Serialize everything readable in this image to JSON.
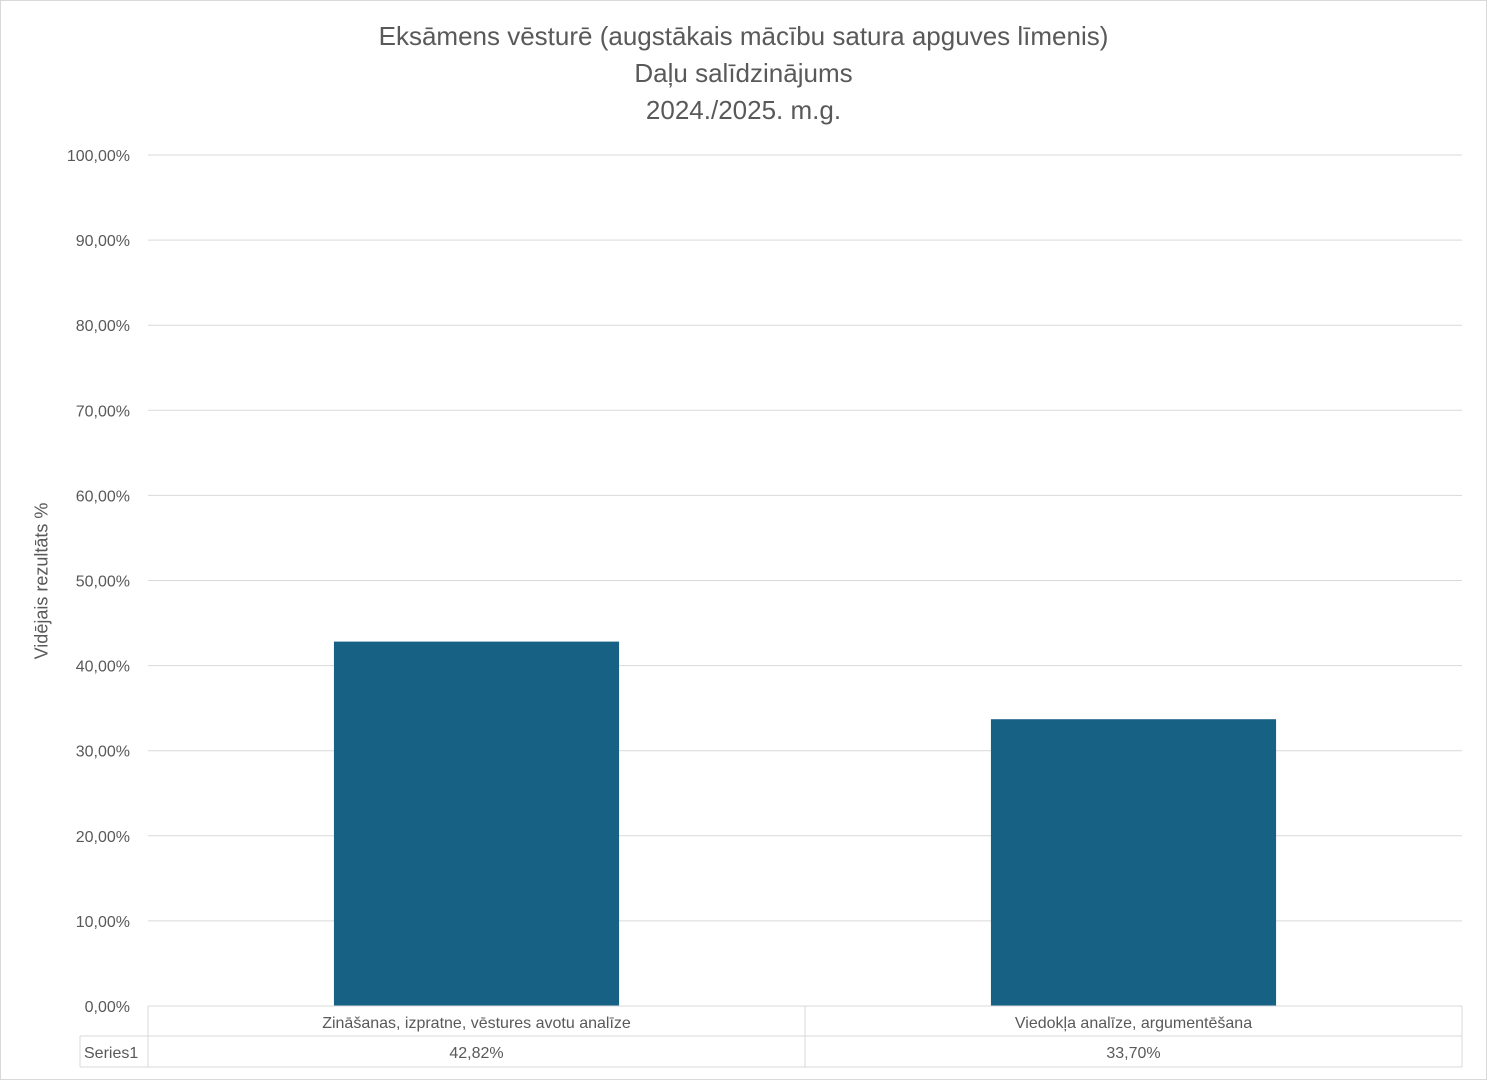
{
  "chart_data": {
    "type": "bar",
    "title_lines": [
      "Eksāmens vēsturē (augstākais mācību satura apguves līmenis)",
      "Daļu salīdzinājums",
      "2024./2025. m.g."
    ],
    "xlabel": "",
    "ylabel": "Vidējais rezultāts %",
    "ylim": [
      0,
      100
    ],
    "ytick_step": 10,
    "ytick_labels": [
      "0,00%",
      "10,00%",
      "20,00%",
      "30,00%",
      "40,00%",
      "50,00%",
      "60,00%",
      "70,00%",
      "80,00%",
      "90,00%",
      "100,00%"
    ],
    "categories": [
      "Zināšanas, izpratne, vēstures avotu analīze",
      "Viedokļa analīze, argumentēšana"
    ],
    "series": [
      {
        "name": "Series1",
        "values": [
          42.82,
          33.7
        ],
        "value_labels": [
          "42,82%",
          "33,70%"
        ]
      }
    ],
    "bar_color": "#176184",
    "grid": true,
    "legend": "data table below plot",
    "data_table": true
  }
}
